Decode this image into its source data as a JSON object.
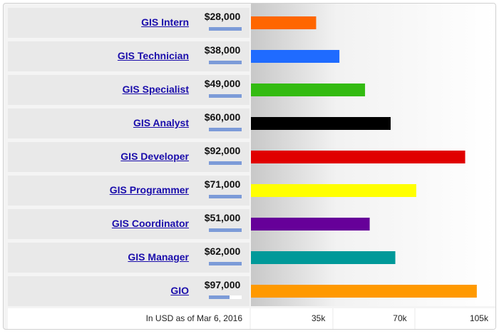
{
  "chart_data": {
    "type": "bar",
    "orientation": "horizontal",
    "categories": [
      "GIS Intern",
      "GIS Technician",
      "GIS Specialist",
      "GIS Analyst",
      "GIS Developer",
      "GIS Programmer",
      "GIS Coordinator",
      "GIS Manager",
      "GIO"
    ],
    "values": [
      28000,
      38000,
      49000,
      60000,
      92000,
      71000,
      51000,
      62000,
      97000
    ],
    "value_labels": [
      "$28,000",
      "$38,000",
      "$49,000",
      "$60,000",
      "$92,000",
      "$71,000",
      "$51,000",
      "$62,000",
      "$97,000"
    ],
    "colors": [
      "#ff6600",
      "#1f6bff",
      "#33bb11",
      "#000000",
      "#e00000",
      "#ffff00",
      "#660099",
      "#009999",
      "#ff9900"
    ],
    "xlim": [
      0,
      105000
    ],
    "x_ticks": [
      35000,
      70000,
      105000
    ],
    "x_tick_labels": [
      "35k",
      "70k",
      "105k"
    ],
    "grid": false,
    "legend": "none",
    "source_note": "In USD as of Mar 6, 2016"
  }
}
